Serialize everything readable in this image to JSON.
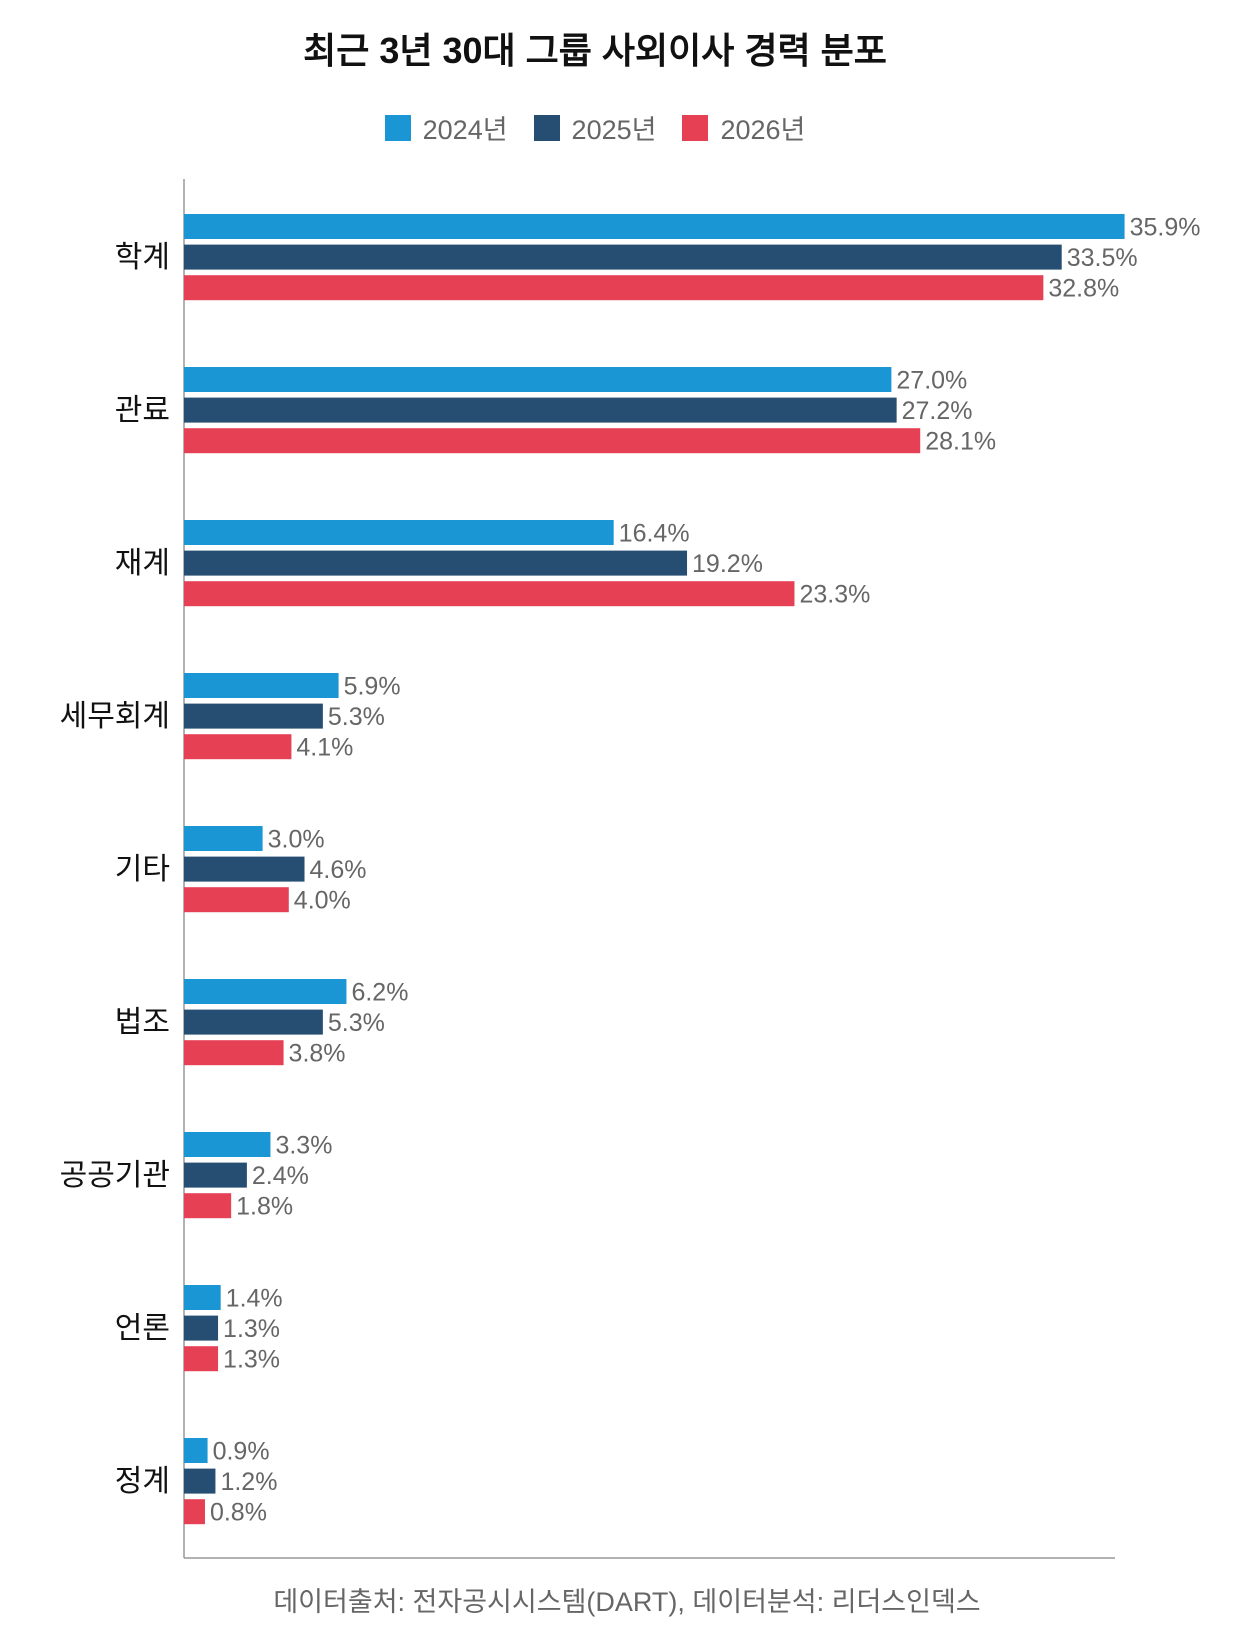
{
  "chart_data": {
    "type": "bar",
    "orientation": "horizontal",
    "title": "최근 3년 30대 그룹 사외이사 경력 분포",
    "categories": [
      "학계",
      "관료",
      "재계",
      "세무회계",
      "기타",
      "법조",
      "공공기관",
      "언론",
      "정계"
    ],
    "series": [
      {
        "name": "2024년",
        "color": "#1a96d4",
        "values": [
          35.9,
          27.0,
          16.4,
          5.9,
          3.0,
          6.2,
          3.3,
          1.4,
          0.9
        ]
      },
      {
        "name": "2025년",
        "color": "#264e72",
        "values": [
          33.5,
          27.2,
          19.2,
          5.3,
          4.6,
          5.3,
          2.4,
          1.3,
          1.2
        ]
      },
      {
        "name": "2026년",
        "color": "#e64055",
        "values": [
          32.8,
          28.1,
          23.3,
          4.1,
          4.0,
          3.8,
          1.8,
          1.3,
          0.8
        ]
      }
    ],
    "value_suffix": "%",
    "xlim": [
      0,
      36
    ],
    "grid": false,
    "legend_position": "top-center",
    "source": "데이터출처: 전자공시시스템(DART), 데이터분석: 리더스인덱스"
  }
}
